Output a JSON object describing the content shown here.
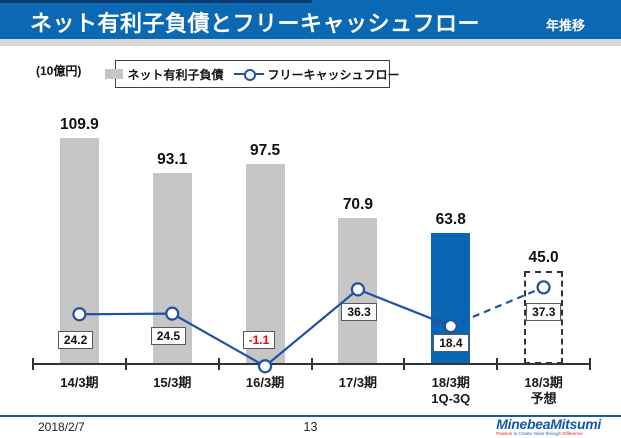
{
  "header": {
    "title": "ネット有利子負債とフリーキャッシュフロー",
    "right_label": "年推移"
  },
  "unit_label": "(10億円)",
  "legend": {
    "bar_label": "ネット有利子負債",
    "line_label": "フリーキャッシュフロー"
  },
  "chart_data": {
    "type": "bar+line combo",
    "title": "ネット有利子負債とフリーキャッシュフロー",
    "ylabel": "(10億円)",
    "legend_position": "top",
    "grid": false,
    "categories": [
      {
        "line1": "14/3期",
        "line2": ""
      },
      {
        "line1": "15/3期",
        "line2": ""
      },
      {
        "line1": "16/3期",
        "line2": ""
      },
      {
        "line1": "17/3期",
        "line2": ""
      },
      {
        "line1": "18/3期",
        "line2": "1Q-3Q"
      },
      {
        "line1": "18/3期",
        "line2": "予想"
      }
    ],
    "series": [
      {
        "name": "ネット有利子負債",
        "type": "bar",
        "values": [
          109.9,
          93.1,
          97.5,
          70.9,
          63.8,
          45.0
        ],
        "bar_styles": [
          "gray",
          "gray",
          "gray",
          "gray",
          "blue",
          "dashed"
        ]
      },
      {
        "name": "フリーキャッシュフロー",
        "type": "line",
        "values": [
          24.2,
          24.5,
          -1.1,
          36.3,
          18.4,
          37.3
        ],
        "label_colors": [
          "black",
          "black",
          "red",
          "black",
          "black",
          "black"
        ],
        "dashed_segment_from_index": 4
      }
    ],
    "colors": {
      "bar_gray": "#c6c6c6",
      "bar_blue": "#0a66b2",
      "line": "#2450a2",
      "negative_label": "#ff0000"
    }
  },
  "footer": {
    "date": "2018/2/7",
    "page": "13",
    "logo_text": "MinebeaMitsumi",
    "tagline_p1": "Passion",
    "tagline_p2": " to Create Value through ",
    "tagline_p3": "Difference"
  }
}
